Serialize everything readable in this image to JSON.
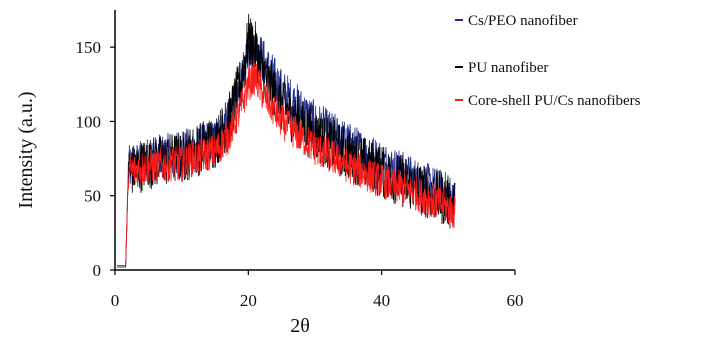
{
  "chart_data": {
    "type": "line",
    "xlabel": "2θ",
    "ylabel": "Intensity (a.u.)",
    "xlim": [
      0,
      60
    ],
    "ylim": [
      0,
      175
    ],
    "x_ticks": [
      "0",
      "20",
      "40",
      "60"
    ],
    "y_ticks": [
      "0",
      "50",
      "100",
      "150"
    ],
    "grid": false,
    "legend_position": "top-right",
    "series": [
      {
        "name": "Cs/PEO nanofiber",
        "color": "#1f2a8a",
        "noise": 16,
        "points": [
          [
            0.3,
            3
          ],
          [
            1.6,
            3
          ],
          [
            2.0,
            68
          ],
          [
            5,
            74
          ],
          [
            10,
            78
          ],
          [
            15,
            88
          ],
          [
            17,
            100
          ],
          [
            19,
            125
          ],
          [
            20,
            150
          ],
          [
            21,
            152
          ],
          [
            22,
            142
          ],
          [
            25,
            120
          ],
          [
            30,
            98
          ],
          [
            35,
            84
          ],
          [
            40,
            72
          ],
          [
            45,
            60
          ],
          [
            50,
            50
          ],
          [
            51,
            45
          ]
        ]
      },
      {
        "name": "PU nanofiber",
        "color": "#000000",
        "noise": 18,
        "points": [
          [
            0.3,
            2
          ],
          [
            1.6,
            2
          ],
          [
            2.0,
            66
          ],
          [
            5,
            72
          ],
          [
            10,
            76
          ],
          [
            15,
            86
          ],
          [
            17,
            100
          ],
          [
            19,
            128
          ],
          [
            20,
            155
          ],
          [
            21,
            150
          ],
          [
            22,
            135
          ],
          [
            25,
            110
          ],
          [
            30,
            90
          ],
          [
            35,
            78
          ],
          [
            40,
            66
          ],
          [
            45,
            56
          ],
          [
            50,
            46
          ],
          [
            51,
            42
          ]
        ]
      },
      {
        "name": "Core-shell PU/Cs nanofibers",
        "color": "#ff1a1a",
        "noise": 12,
        "points": [
          [
            0.3,
            3
          ],
          [
            1.6,
            3
          ],
          [
            2.0,
            66
          ],
          [
            5,
            70
          ],
          [
            10,
            72
          ],
          [
            15,
            80
          ],
          [
            17,
            90
          ],
          [
            19,
            110
          ],
          [
            20,
            125
          ],
          [
            21,
            130
          ],
          [
            22,
            120
          ],
          [
            25,
            100
          ],
          [
            30,
            82
          ],
          [
            35,
            70
          ],
          [
            40,
            60
          ],
          [
            45,
            52
          ],
          [
            50,
            42
          ],
          [
            51,
            38
          ]
        ]
      }
    ]
  }
}
